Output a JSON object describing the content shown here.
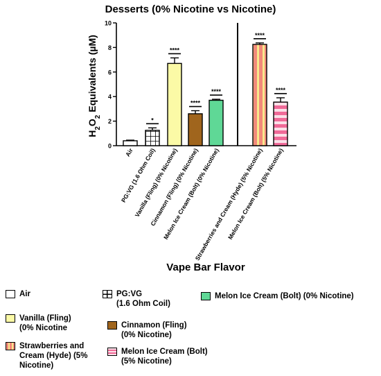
{
  "chart_data": {
    "type": "bar",
    "title": "Desserts (0% Nicotine vs Nicotine)",
    "ylabel_parts": [
      "H",
      "2",
      "O",
      "2",
      " Equivalents (µM)"
    ],
    "xlabel": "Vape Bar Flavor",
    "ylim": [
      0,
      10
    ],
    "yticks": [
      "0",
      "2",
      "4",
      "6",
      "8",
      "10"
    ],
    "grid": false,
    "categories": [
      "Air",
      "PG:VG (1.6 Ohm Coil)",
      "Vanilla (Fling) (0% Nicotine)",
      "Cinnamon (Fling) (0% Nicotine)",
      "Melon Ice Cream (Bolt) (0% Nicotine)",
      "Strawberries and Cream (Hyde) (5% Nicotine)",
      "Melon Ice Cream (Bolt) (5% Nicotine)"
    ],
    "values": [
      0.4,
      1.25,
      6.7,
      2.6,
      3.7,
      8.25,
      3.55
    ],
    "errors": [
      0.05,
      0.2,
      0.45,
      0.25,
      0.08,
      0.12,
      0.35
    ],
    "significance": [
      "",
      "*",
      "****",
      "****",
      "****",
      "****",
      "****"
    ],
    "styles": [
      {
        "fill": "#ffffff",
        "pattern": "none"
      },
      {
        "fill": "#ffffff",
        "pattern": "grid"
      },
      {
        "fill": "#fbfaa6",
        "pattern": "none"
      },
      {
        "fill": "#a0651d",
        "pattern": "none"
      },
      {
        "fill": "#5fd896",
        "pattern": "none"
      },
      {
        "fill": "#f28a7a",
        "pattern": "vstripe",
        "stripe": "#f8e98c"
      },
      {
        "fill": "#f06a98",
        "pattern": "hstripe",
        "stripe": "#fbe0e8"
      }
    ],
    "divider_after_index": 4,
    "legend_position": "bottom"
  },
  "legend": [
    {
      "label": "Air",
      "fill": "#ffffff"
    },
    {
      "label": "PG:VG\n(1.6 Ohm Coil)",
      "fill": "#ffffff"
    },
    {
      "label": "Melon Ice Cream (Bolt) (0% Nicotine)",
      "fill": "#5fd896"
    },
    {
      "label": "Vanilla (Fling)\n(0% Nicotine",
      "fill": "#fbfaa6"
    },
    {
      "label": "Cinnamon (Fling)\n(0% Nicotine)",
      "fill": "#a0651d"
    },
    {
      "label": "Strawberries and\nCream (Hyde) (5%\nNicotine)",
      "fill": "#f28a7a"
    },
    {
      "label": "Melon Ice Cream (Bolt)\n(5% Nicotine)",
      "fill": "#f7c6d4"
    }
  ]
}
